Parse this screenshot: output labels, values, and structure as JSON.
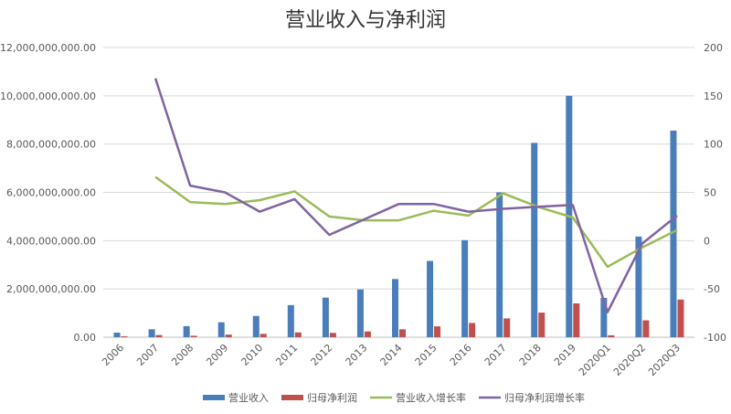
{
  "chart_data": {
    "type": "bar",
    "title": "营业收入与净利润",
    "categories": [
      "2006",
      "2007",
      "2008",
      "2009",
      "2010",
      "2011",
      "2012",
      "2013",
      "2014",
      "2015",
      "2016",
      "2017",
      "2018",
      "2019",
      "2020Q1",
      "2020Q2",
      "2020Q3"
    ],
    "y_left": {
      "range": [
        0,
        12000000000
      ],
      "ticks": [
        0,
        2000000000,
        4000000000,
        6000000000,
        8000000000,
        10000000000,
        12000000000
      ],
      "tick_labels": [
        "0.00",
        "2,000,000,000.00",
        "4,000,000,000.00",
        "6,000,000,000.00",
        "8,000,000,000.00",
        "10,000,000,000.00",
        "12,000,000,000.00"
      ]
    },
    "y_right": {
      "range": [
        -100,
        200
      ],
      "ticks": [
        -100,
        -50,
        0,
        50,
        100,
        150,
        200
      ],
      "tick_labels": [
        "-100",
        "-50",
        "0",
        "50",
        "100",
        "150",
        "200"
      ]
    },
    "series": [
      {
        "name": "营业收入",
        "type": "bar",
        "axis": "left",
        "color": "#4a7ebb",
        "values": [
          190000000,
          330000000,
          460000000,
          620000000,
          880000000,
          1330000000,
          1640000000,
          1980000000,
          2410000000,
          3160000000,
          4020000000,
          6000000000,
          8050000000,
          10000000000,
          1630000000,
          4170000000,
          8560000000
        ]
      },
      {
        "name": "归母净利润",
        "type": "bar",
        "axis": "left",
        "color": "#c0504d",
        "values": [
          40000000,
          90000000,
          60000000,
          110000000,
          140000000,
          200000000,
          180000000,
          240000000,
          330000000,
          450000000,
          590000000,
          780000000,
          1020000000,
          1400000000,
          80000000,
          700000000,
          1560000000
        ]
      },
      {
        "name": "营业收入增长率",
        "type": "line",
        "axis": "right",
        "color": "#9bbb59",
        "values": [
          null,
          66,
          40,
          38,
          42,
          51,
          25,
          21,
          21,
          31,
          26,
          49,
          35,
          24,
          -27,
          -7,
          11
        ]
      },
      {
        "name": "归母净利润增长率",
        "type": "line",
        "axis": "right",
        "color": "#8064a2",
        "values": [
          null,
          168,
          57,
          50,
          30,
          43,
          6,
          22,
          38,
          38,
          30,
          33,
          35,
          37,
          -74,
          -3,
          26
        ]
      }
    ],
    "legend_position": "bottom",
    "grid": true
  }
}
